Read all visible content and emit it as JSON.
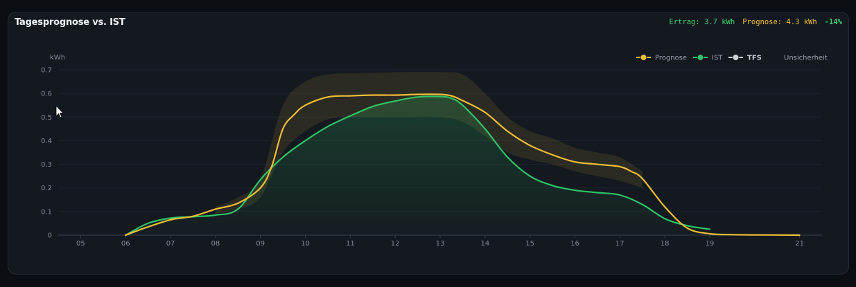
{
  "chart_title": "Tagesprognose vs. IST",
  "stats": {
    "ertrag": "Ertrag: 3.7 kWh",
    "prognose": "Prognose: 4.3 kWh",
    "diff": "-14%"
  },
  "colors": {
    "prognose": "#f2bf37",
    "ist": "#2fc466",
    "tfs": "#cfd3d9",
    "background": "#141920",
    "grid": "#1f252e"
  },
  "chart_data": {
    "type": "line",
    "ylabel": "kWh",
    "ylim": [
      0,
      0.7
    ],
    "yticks": [
      0,
      0.1,
      0.2,
      0.3,
      0.4,
      0.5,
      0.6,
      0.7
    ],
    "ytick_labels": [
      "0",
      "0.1",
      "0.2",
      "0.3",
      "0.4",
      "0.5",
      "0.6",
      "0.7"
    ],
    "xlim": [
      4.5,
      21.5
    ],
    "xticks": [
      "05",
      "06",
      "07",
      "08",
      "09",
      "10",
      "11",
      "12",
      "13",
      "14",
      "15",
      "16",
      "17",
      "18",
      "19",
      "21"
    ],
    "legend_position": "top-right",
    "legend": [
      "Prognose",
      "IST",
      "TFS",
      "Unsicherheit"
    ],
    "series": [
      {
        "name": "Prognose",
        "color": "#f2bf37",
        "x": [
          6,
          6.5,
          7,
          7.5,
          8,
          8.5,
          9,
          9.25,
          9.5,
          9.75,
          10,
          10.5,
          11,
          11.5,
          12,
          12.5,
          13,
          13.25,
          13.5,
          14,
          14.5,
          15,
          15.5,
          16,
          16.5,
          17,
          17.25,
          17.5,
          18,
          18.5,
          19,
          19.5,
          20,
          21
        ],
        "y": [
          0.0,
          0.035,
          0.065,
          0.08,
          0.11,
          0.135,
          0.2,
          0.29,
          0.45,
          0.51,
          0.55,
          0.585,
          0.59,
          0.593,
          0.593,
          0.596,
          0.596,
          0.59,
          0.57,
          0.52,
          0.44,
          0.38,
          0.34,
          0.31,
          0.3,
          0.29,
          0.27,
          0.24,
          0.12,
          0.03,
          0.006,
          0.002,
          0.001,
          0.0
        ]
      },
      {
        "name": "IST",
        "color": "#2fc466",
        "x": [
          6,
          6.5,
          7,
          7.5,
          8,
          8.5,
          9,
          9.5,
          10,
          10.5,
          11,
          11.5,
          12,
          12.5,
          13,
          13.25,
          13.5,
          14,
          14.5,
          15,
          15.5,
          16,
          16.5,
          17,
          17.5,
          18,
          18.5,
          19
        ],
        "y": [
          0.0,
          0.05,
          0.072,
          0.078,
          0.085,
          0.11,
          0.235,
          0.33,
          0.4,
          0.46,
          0.505,
          0.545,
          0.568,
          0.585,
          0.587,
          0.58,
          0.55,
          0.45,
          0.33,
          0.25,
          0.21,
          0.19,
          0.18,
          0.17,
          0.13,
          0.07,
          0.04,
          0.025
        ]
      }
    ],
    "uncertainty_band": {
      "name": "Unsicherheit",
      "x": [
        8,
        8.5,
        9,
        9.5,
        10,
        10.5,
        11,
        12,
        13,
        13.5,
        14,
        14.5,
        15,
        15.5,
        16,
        16.5,
        17,
        17.5
      ],
      "upper": [
        0.12,
        0.16,
        0.24,
        0.55,
        0.65,
        0.68,
        0.685,
        0.69,
        0.69,
        0.68,
        0.6,
        0.5,
        0.44,
        0.41,
        0.37,
        0.35,
        0.33,
        0.27
      ],
      "lower": [
        0.09,
        0.11,
        0.16,
        0.35,
        0.44,
        0.49,
        0.5,
        0.5,
        0.5,
        0.48,
        0.42,
        0.35,
        0.32,
        0.3,
        0.27,
        0.25,
        0.23,
        0.2
      ]
    }
  }
}
